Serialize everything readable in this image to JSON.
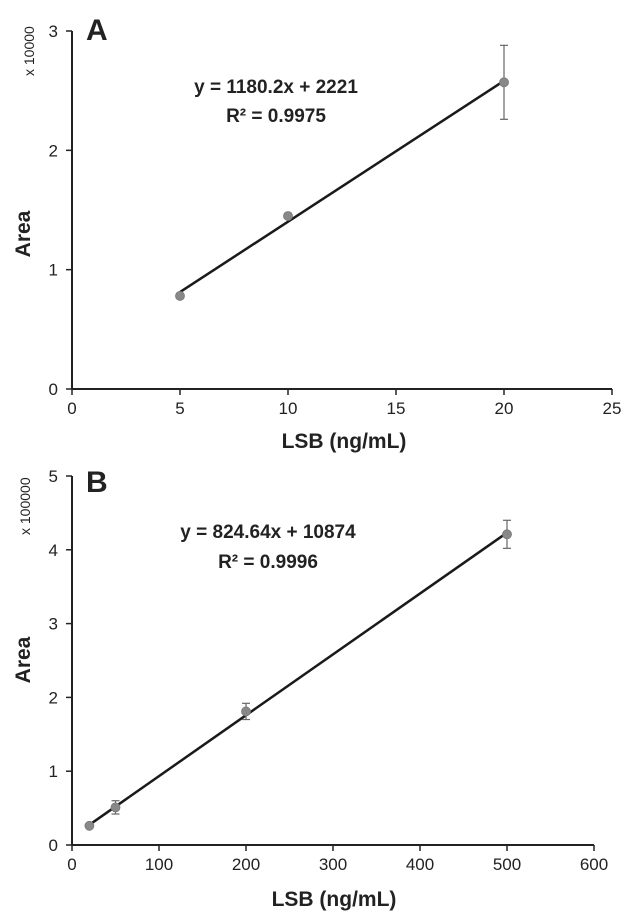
{
  "chart_data": [
    {
      "type": "scatter",
      "panel_label": "A",
      "xlabel": "LSB (ng/mL)",
      "ylabel": "Area",
      "y_multiplier": "x 10000",
      "xlim": [
        0,
        25
      ],
      "ylim": [
        0,
        3
      ],
      "xticks": [
        "0",
        "5",
        "10",
        "15",
        "20",
        "25"
      ],
      "yticks": [
        "0",
        "1",
        "2",
        "3"
      ],
      "grid": false,
      "series": [
        {
          "x": [
            5,
            10,
            20
          ],
          "y": [
            0.78,
            1.45,
            2.57
          ],
          "yerr": [
            0.02,
            0.02,
            0.31
          ]
        }
      ],
      "trendline": {
        "slope": 0.11802,
        "intercept": 0.2221,
        "x_range": [
          5,
          20
        ]
      },
      "annotations": [
        "y = 1180.2x + 2221",
        "R² = 0.9975"
      ],
      "colors": {
        "marker": "#888888",
        "line": "#1a1a1a",
        "axis": "#222222"
      }
    },
    {
      "type": "scatter",
      "panel_label": "B",
      "xlabel": "LSB (ng/mL)",
      "ylabel": "Area",
      "y_multiplier": "x 100000",
      "xlim": [
        0,
        600
      ],
      "ylim": [
        0,
        5
      ],
      "xticks": [
        "0",
        "100",
        "200",
        "300",
        "400",
        "500",
        "600"
      ],
      "yticks": [
        "0",
        "1",
        "2",
        "3",
        "4",
        "5"
      ],
      "grid": false,
      "series": [
        {
          "x": [
            20,
            50,
            200,
            500
          ],
          "y": [
            0.26,
            0.51,
            1.81,
            4.21
          ],
          "yerr": [
            0.02,
            0.09,
            0.11,
            0.19
          ]
        }
      ],
      "trendline": {
        "slope": 0.0082464,
        "intercept": 0.10874,
        "x_range": [
          20,
          500
        ]
      },
      "annotations": [
        "y = 824.64x + 10874",
        "R² = 0.9996"
      ],
      "colors": {
        "marker": "#888888",
        "line": "#1a1a1a",
        "axis": "#222222"
      }
    }
  ]
}
